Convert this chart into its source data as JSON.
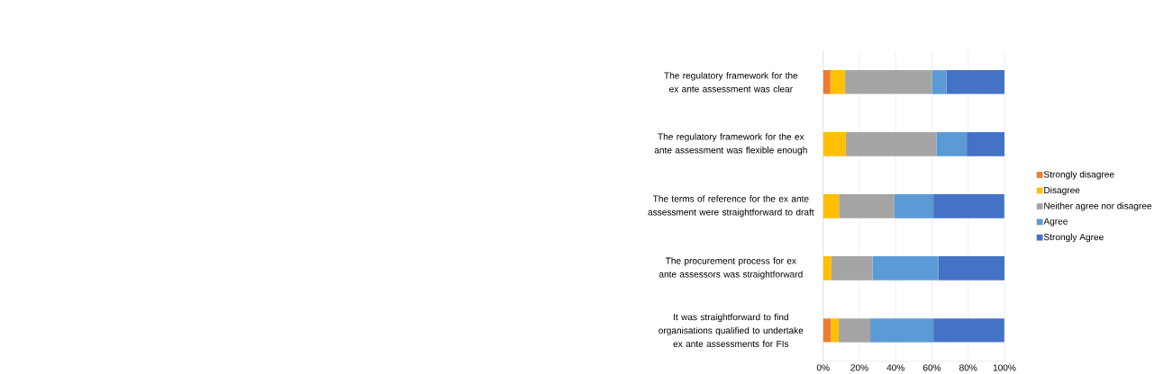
{
  "chart_data": {
    "type": "bar",
    "orientation": "horizontal",
    "stacked": true,
    "categories": [
      "The regulatory framework for the ex ante assessment was clear",
      "The regulatory framework for the ex ante assessment was flexible enough",
      "The terms of reference for the ex ante assessment were straightforward to draft",
      "The procurement process for ex ante assessors was straightforward",
      "It was straightforward to find organisations qualified to undertake ex ante assessments for FIs"
    ],
    "series": [
      {
        "name": "Strongly disagree",
        "color": "#ed7d31",
        "values": [
          4,
          0,
          0,
          0,
          4.3
        ]
      },
      {
        "name": "Disagree",
        "color": "#ffc000",
        "values": [
          8,
          12.5,
          8.7,
          4.5,
          4.3
        ]
      },
      {
        "name": "Neither agree nor disagree",
        "color": "#a5a5a5",
        "values": [
          48,
          50,
          30.4,
          22.7,
          17.4
        ]
      },
      {
        "name": "Agree",
        "color": "#5b9bd5",
        "values": [
          8,
          16.7,
          21.7,
          36.4,
          34.8
        ]
      },
      {
        "name": "Strongly Agree",
        "color": "#4472c4",
        "values": [
          32,
          20.8,
          39.1,
          36.4,
          39.1
        ]
      }
    ],
    "xlim": [
      0,
      100
    ],
    "xticks": [
      {
        "value": 0,
        "label": "0%"
      },
      {
        "value": 20,
        "label": "20%"
      },
      {
        "value": 40,
        "label": "40%"
      },
      {
        "value": 60,
        "label": "60%"
      },
      {
        "value": 80,
        "label": "80%"
      },
      {
        "value": 100,
        "label": "100%"
      }
    ],
    "grid": "x",
    "legend": "right"
  }
}
